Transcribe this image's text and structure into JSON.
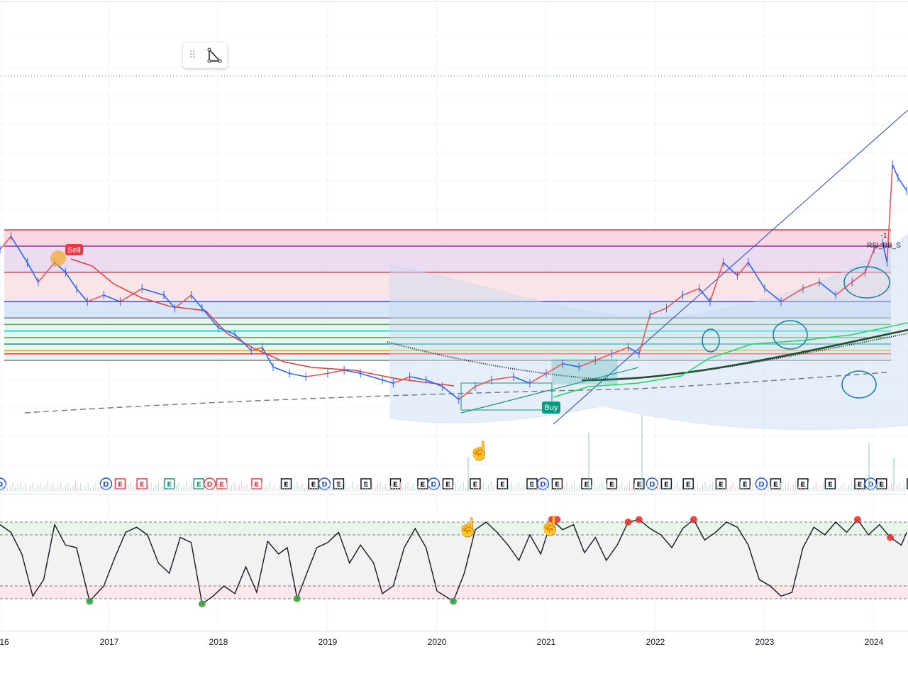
{
  "toolbar": {
    "grip_icon": "grip-dots-icon",
    "tool_icon": "triangle-pattern-icon"
  },
  "signals": {
    "sell": "Sell",
    "buy": "Buy",
    "strategy_label": "RSI_BB_S",
    "strategy_qty": "-1"
  },
  "colors": {
    "up": "#ef5350",
    "down": "#2962ff",
    "rsi_line": "#131722",
    "overbought_band": "#e8f5e9",
    "oversold_band": "#fde7ea",
    "fib_fill_top": "#f8c8d4",
    "fib_fill_mid": "#e6d3ee",
    "fib_fill_low": "#cfe0f8"
  },
  "event_markers": [
    {
      "t": "D",
      "year": 2016.0,
      "color": "#1e53e5"
    },
    {
      "t": "D",
      "year": 2016.97,
      "color": "#1e53e5"
    },
    {
      "t": "E",
      "year": 2017.1,
      "color": "#f23645"
    },
    {
      "t": "E",
      "year": 2017.3,
      "color": "#f23645"
    },
    {
      "t": "E",
      "year": 2017.55,
      "color": "#089981"
    },
    {
      "t": "E",
      "year": 2017.82,
      "color": "#089981"
    },
    {
      "t": "D",
      "year": 2017.92,
      "color": "#f23645"
    },
    {
      "t": "E",
      "year": 2018.03,
      "color": "#f23645"
    },
    {
      "t": "E",
      "year": 2018.35,
      "color": "#f23645"
    },
    {
      "t": "E",
      "year": 2018.62,
      "color": "#131722"
    },
    {
      "t": "E",
      "year": 2018.87,
      "color": "#131722"
    },
    {
      "t": "D",
      "year": 2018.97,
      "color": "#1e53e5"
    },
    {
      "t": "E",
      "year": 2019.1,
      "color": "#131722"
    },
    {
      "t": "E",
      "year": 2019.35,
      "color": "#131722"
    },
    {
      "t": "E",
      "year": 2019.62,
      "color": "#131722"
    },
    {
      "t": "E",
      "year": 2019.87,
      "color": "#131722"
    },
    {
      "t": "D",
      "year": 2019.97,
      "color": "#1e53e5"
    },
    {
      "t": "E",
      "year": 2020.1,
      "color": "#131722"
    },
    {
      "t": "E",
      "year": 2020.35,
      "color": "#131722"
    },
    {
      "t": "E",
      "year": 2020.6,
      "color": "#131722"
    },
    {
      "t": "E",
      "year": 2020.87,
      "color": "#131722"
    },
    {
      "t": "D",
      "year": 2020.97,
      "color": "#1e53e5"
    },
    {
      "t": "E",
      "year": 2021.1,
      "color": "#131722"
    },
    {
      "t": "E",
      "year": 2021.37,
      "color": "#131722"
    },
    {
      "t": "E",
      "year": 2021.6,
      "color": "#131722"
    },
    {
      "t": "E",
      "year": 2021.85,
      "color": "#131722"
    },
    {
      "t": "D",
      "year": 2021.97,
      "color": "#1e53e5"
    },
    {
      "t": "E",
      "year": 2022.1,
      "color": "#131722"
    },
    {
      "t": "E",
      "year": 2022.3,
      "color": "#131722"
    },
    {
      "t": "E",
      "year": 2022.6,
      "color": "#131722"
    },
    {
      "t": "E",
      "year": 2022.82,
      "color": "#131722"
    },
    {
      "t": "D",
      "year": 2022.97,
      "color": "#1e53e5"
    },
    {
      "t": "E",
      "year": 2023.1,
      "color": "#131722"
    },
    {
      "t": "E",
      "year": 2023.35,
      "color": "#131722"
    },
    {
      "t": "E",
      "year": 2023.6,
      "color": "#131722"
    },
    {
      "t": "E",
      "year": 2023.87,
      "color": "#131722"
    },
    {
      "t": "D",
      "year": 2023.97,
      "color": "#1e53e5"
    },
    {
      "t": "E",
      "year": 2024.07,
      "color": "#131722"
    },
    {
      "t": "E",
      "year": 2024.35,
      "color": "#131722"
    }
  ],
  "chart_data": {
    "type": "line",
    "title": "",
    "xlabel": "",
    "ylabel": "",
    "x_tick_labels": [
      "16",
      "2017",
      "2018",
      "2019",
      "2020",
      "2021",
      "2022",
      "2023",
      "2024"
    ],
    "x_tick_years": [
      2016,
      2017,
      2018,
      2019,
      2020,
      2021,
      2022,
      2023,
      2024
    ],
    "x_range": [
      2016.0,
      2024.3
    ],
    "price_range": [
      0,
      100
    ],
    "price_series": [
      {
        "x": 2016.0,
        "y": 54
      },
      {
        "x": 2016.1,
        "y": 58
      },
      {
        "x": 2016.25,
        "y": 50
      },
      {
        "x": 2016.35,
        "y": 44
      },
      {
        "x": 2016.5,
        "y": 50
      },
      {
        "x": 2016.6,
        "y": 47
      },
      {
        "x": 2016.7,
        "y": 42
      },
      {
        "x": 2016.8,
        "y": 38
      },
      {
        "x": 2016.95,
        "y": 40
      },
      {
        "x": 2017.1,
        "y": 38
      },
      {
        "x": 2017.3,
        "y": 42
      },
      {
        "x": 2017.5,
        "y": 40
      },
      {
        "x": 2017.6,
        "y": 36
      },
      {
        "x": 2017.75,
        "y": 40
      },
      {
        "x": 2017.85,
        "y": 36
      },
      {
        "x": 2018.0,
        "y": 30
      },
      {
        "x": 2018.15,
        "y": 28
      },
      {
        "x": 2018.3,
        "y": 23
      },
      {
        "x": 2018.4,
        "y": 24
      },
      {
        "x": 2018.5,
        "y": 18
      },
      {
        "x": 2018.65,
        "y": 16
      },
      {
        "x": 2018.8,
        "y": 15
      },
      {
        "x": 2019.0,
        "y": 16
      },
      {
        "x": 2019.15,
        "y": 17
      },
      {
        "x": 2019.3,
        "y": 16
      },
      {
        "x": 2019.5,
        "y": 14
      },
      {
        "x": 2019.6,
        "y": 13
      },
      {
        "x": 2019.75,
        "y": 15
      },
      {
        "x": 2019.9,
        "y": 14
      },
      {
        "x": 2020.05,
        "y": 12
      },
      {
        "x": 2020.2,
        "y": 8
      },
      {
        "x": 2020.35,
        "y": 12
      },
      {
        "x": 2020.5,
        "y": 14
      },
      {
        "x": 2020.7,
        "y": 15
      },
      {
        "x": 2020.85,
        "y": 13
      },
      {
        "x": 2021.0,
        "y": 16
      },
      {
        "x": 2021.15,
        "y": 19
      },
      {
        "x": 2021.3,
        "y": 18
      },
      {
        "x": 2021.45,
        "y": 20
      },
      {
        "x": 2021.6,
        "y": 22
      },
      {
        "x": 2021.75,
        "y": 24
      },
      {
        "x": 2021.85,
        "y": 22
      },
      {
        "x": 2021.95,
        "y": 34
      },
      {
        "x": 2022.1,
        "y": 36
      },
      {
        "x": 2022.25,
        "y": 40
      },
      {
        "x": 2022.4,
        "y": 42
      },
      {
        "x": 2022.5,
        "y": 38
      },
      {
        "x": 2022.62,
        "y": 50
      },
      {
        "x": 2022.75,
        "y": 46
      },
      {
        "x": 2022.85,
        "y": 50
      },
      {
        "x": 2023.0,
        "y": 42
      },
      {
        "x": 2023.15,
        "y": 38
      },
      {
        "x": 2023.35,
        "y": 42
      },
      {
        "x": 2023.5,
        "y": 44
      },
      {
        "x": 2023.65,
        "y": 40
      },
      {
        "x": 2023.8,
        "y": 44
      },
      {
        "x": 2023.92,
        "y": 47
      },
      {
        "x": 2024.0,
        "y": 54
      },
      {
        "x": 2024.08,
        "y": 56
      },
      {
        "x": 2024.12,
        "y": 50
      },
      {
        "x": 2024.17,
        "y": 80
      },
      {
        "x": 2024.22,
        "y": 76
      },
      {
        "x": 2024.3,
        "y": 72
      }
    ],
    "rsi_range": [
      0,
      100
    ],
    "rsi_levels": [
      80,
      70,
      30,
      20
    ],
    "rsi_series": [
      {
        "x": 2016.0,
        "y": 78
      },
      {
        "x": 2016.1,
        "y": 72
      },
      {
        "x": 2016.2,
        "y": 55
      },
      {
        "x": 2016.3,
        "y": 22
      },
      {
        "x": 2016.4,
        "y": 35
      },
      {
        "x": 2016.5,
        "y": 78
      },
      {
        "x": 2016.6,
        "y": 62
      },
      {
        "x": 2016.7,
        "y": 60
      },
      {
        "x": 2016.82,
        "y": 18
      },
      {
        "x": 2016.95,
        "y": 30
      },
      {
        "x": 2017.05,
        "y": 52
      },
      {
        "x": 2017.15,
        "y": 72
      },
      {
        "x": 2017.25,
        "y": 76
      },
      {
        "x": 2017.35,
        "y": 70
      },
      {
        "x": 2017.45,
        "y": 48
      },
      {
        "x": 2017.55,
        "y": 40
      },
      {
        "x": 2017.65,
        "y": 68
      },
      {
        "x": 2017.75,
        "y": 64
      },
      {
        "x": 2017.85,
        "y": 16
      },
      {
        "x": 2017.95,
        "y": 22
      },
      {
        "x": 2018.05,
        "y": 30
      },
      {
        "x": 2018.15,
        "y": 24
      },
      {
        "x": 2018.25,
        "y": 45
      },
      {
        "x": 2018.35,
        "y": 25
      },
      {
        "x": 2018.45,
        "y": 65
      },
      {
        "x": 2018.55,
        "y": 55
      },
      {
        "x": 2018.63,
        "y": 60
      },
      {
        "x": 2018.72,
        "y": 20
      },
      {
        "x": 2018.8,
        "y": 38
      },
      {
        "x": 2018.9,
        "y": 60
      },
      {
        "x": 2019.0,
        "y": 64
      },
      {
        "x": 2019.1,
        "y": 72
      },
      {
        "x": 2019.2,
        "y": 48
      },
      {
        "x": 2019.3,
        "y": 62
      },
      {
        "x": 2019.42,
        "y": 48
      },
      {
        "x": 2019.5,
        "y": 24
      },
      {
        "x": 2019.6,
        "y": 30
      },
      {
        "x": 2019.7,
        "y": 60
      },
      {
        "x": 2019.8,
        "y": 75
      },
      {
        "x": 2019.9,
        "y": 60
      },
      {
        "x": 2020.0,
        "y": 26
      },
      {
        "x": 2020.15,
        "y": 18
      },
      {
        "x": 2020.25,
        "y": 40
      },
      {
        "x": 2020.35,
        "y": 74
      },
      {
        "x": 2020.45,
        "y": 80
      },
      {
        "x": 2020.55,
        "y": 72
      },
      {
        "x": 2020.65,
        "y": 62
      },
      {
        "x": 2020.75,
        "y": 50
      },
      {
        "x": 2020.85,
        "y": 70
      },
      {
        "x": 2020.95,
        "y": 55
      },
      {
        "x": 2021.05,
        "y": 82
      },
      {
        "x": 2021.15,
        "y": 74
      },
      {
        "x": 2021.25,
        "y": 78
      },
      {
        "x": 2021.35,
        "y": 56
      },
      {
        "x": 2021.45,
        "y": 68
      },
      {
        "x": 2021.55,
        "y": 50
      },
      {
        "x": 2021.65,
        "y": 62
      },
      {
        "x": 2021.75,
        "y": 80
      },
      {
        "x": 2021.85,
        "y": 82
      },
      {
        "x": 2021.95,
        "y": 75
      },
      {
        "x": 2022.05,
        "y": 70
      },
      {
        "x": 2022.15,
        "y": 60
      },
      {
        "x": 2022.25,
        "y": 75
      },
      {
        "x": 2022.35,
        "y": 82
      },
      {
        "x": 2022.45,
        "y": 66
      },
      {
        "x": 2022.55,
        "y": 72
      },
      {
        "x": 2022.65,
        "y": 80
      },
      {
        "x": 2022.75,
        "y": 76
      },
      {
        "x": 2022.85,
        "y": 62
      },
      {
        "x": 2022.95,
        "y": 35
      },
      {
        "x": 2023.05,
        "y": 30
      },
      {
        "x": 2023.15,
        "y": 22
      },
      {
        "x": 2023.25,
        "y": 25
      },
      {
        "x": 2023.35,
        "y": 60
      },
      {
        "x": 2023.45,
        "y": 76
      },
      {
        "x": 2023.55,
        "y": 70
      },
      {
        "x": 2023.65,
        "y": 80
      },
      {
        "x": 2023.75,
        "y": 72
      },
      {
        "x": 2023.85,
        "y": 82
      },
      {
        "x": 2023.95,
        "y": 70
      },
      {
        "x": 2024.05,
        "y": 78
      },
      {
        "x": 2024.15,
        "y": 68
      },
      {
        "x": 2024.25,
        "y": 62
      },
      {
        "x": 2024.3,
        "y": 72
      }
    ],
    "rsi_oversold_dots": [
      2016.82,
      2017.85,
      2018.72,
      2020.15
    ],
    "rsi_overbought_dots": [
      2021.05,
      2021.1,
      2021.75,
      2021.85,
      2022.35,
      2023.85,
      2024.15
    ],
    "fib_levels": [
      {
        "y": 60,
        "color": "#f23645"
      },
      {
        "y": 55,
        "color": "#9c27b0"
      },
      {
        "y": 47,
        "color": "#f23645"
      },
      {
        "y": 38,
        "color": "#1e53e5"
      },
      {
        "y": 33,
        "color": "#787b86"
      },
      {
        "y": 31,
        "color": "#4caf50"
      },
      {
        "y": 29,
        "color": "#00bcd4"
      },
      {
        "y": 27,
        "color": "#4caf50"
      },
      {
        "y": 25,
        "color": "#089981"
      },
      {
        "y": 23,
        "color": "#f7a600"
      },
      {
        "y": 22,
        "color": "#f23645"
      },
      {
        "y": 20,
        "color": "#787b86"
      }
    ]
  }
}
